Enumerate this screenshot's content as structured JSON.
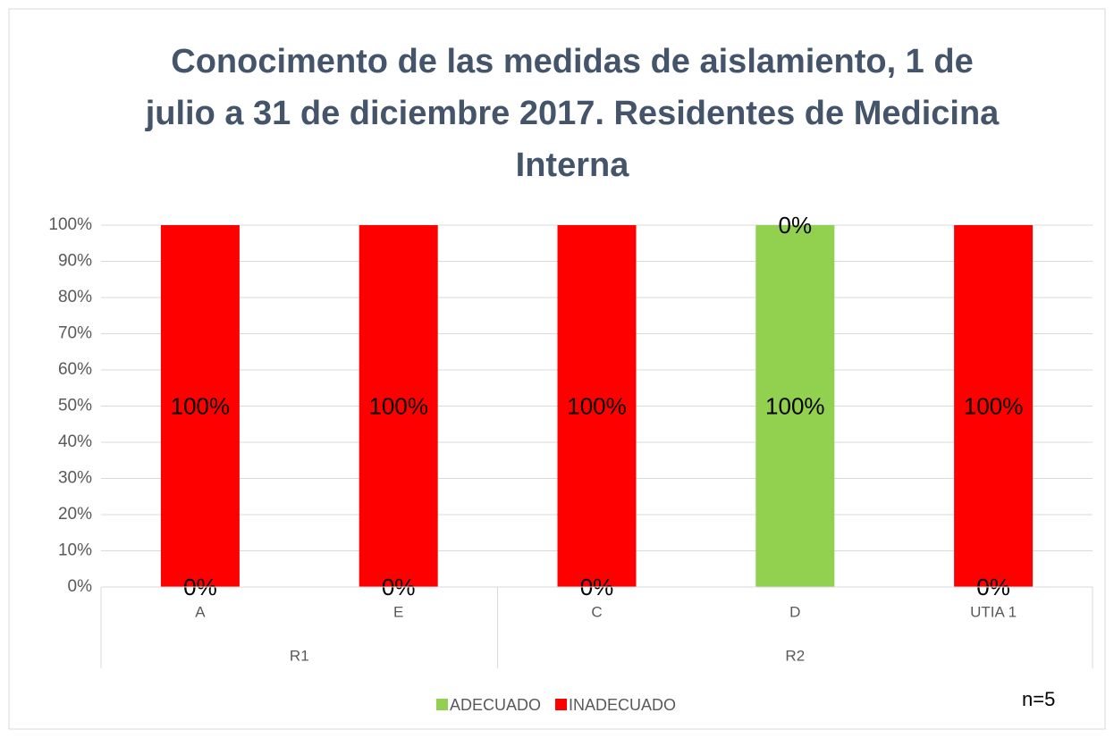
{
  "chart_data": {
    "type": "stacked_bar",
    "title": "Conocimento de las medidas de aislamiento, 1 de julio a 31 de diciembre 2017. Residentes de Medicina Interna",
    "categories": [
      "A",
      "E",
      "C",
      "D",
      "UTIA 1"
    ],
    "groups": [
      "R1",
      "R1",
      "R2",
      "R2",
      "R2"
    ],
    "series": [
      {
        "name": "ADECUADO",
        "color": "#92d050",
        "values": [
          0,
          0,
          0,
          100,
          0
        ],
        "value_labels": [
          "0%",
          "0%",
          "0%",
          "100%",
          "0%"
        ]
      },
      {
        "name": "INADECUADO",
        "color": "#ff0000",
        "values": [
          100,
          100,
          100,
          0,
          100
        ],
        "value_labels": [
          "100%",
          "100%",
          "100%",
          "0%",
          "100%"
        ]
      }
    ],
    "ylim": [
      0,
      100
    ],
    "yticks": [
      {
        "value": 0,
        "label": "0%"
      },
      {
        "value": 10,
        "label": "10%"
      },
      {
        "value": 20,
        "label": "20%"
      },
      {
        "value": 30,
        "label": "30%"
      },
      {
        "value": 40,
        "label": "40%"
      },
      {
        "value": 50,
        "label": "50%"
      },
      {
        "value": 60,
        "label": "60%"
      },
      {
        "value": 70,
        "label": "70%"
      },
      {
        "value": 80,
        "label": "80%"
      },
      {
        "value": 90,
        "label": "90%"
      },
      {
        "value": 100,
        "label": "100%"
      }
    ],
    "grid": true,
    "legend": "bottom",
    "annotation": "n=5"
  }
}
